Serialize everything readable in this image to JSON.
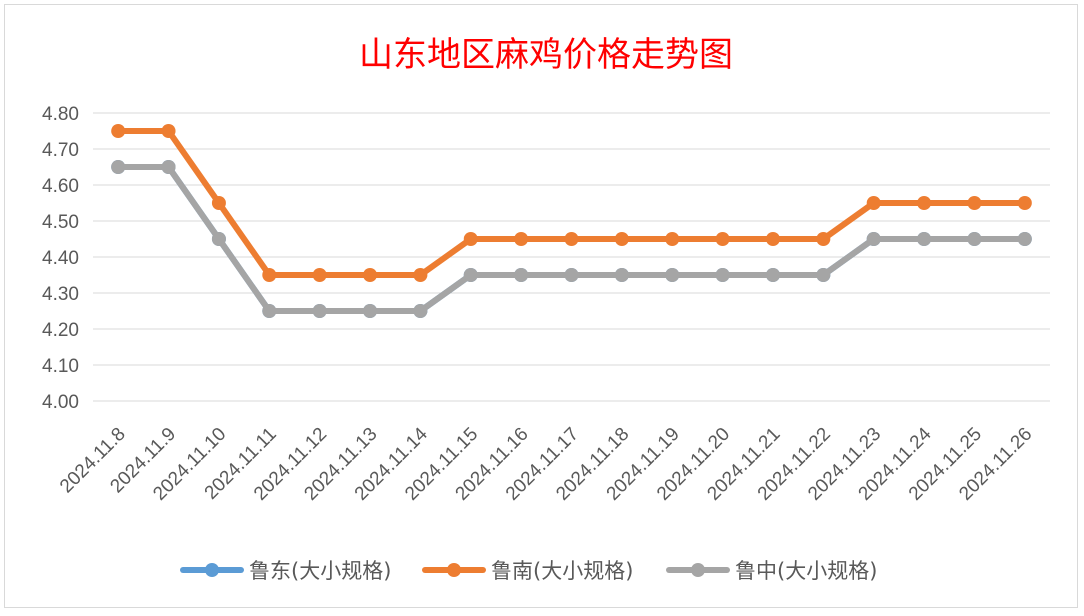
{
  "chart_data": {
    "type": "line",
    "title": "山东地区麻鸡价格走势图",
    "xlabel": "",
    "ylabel": "",
    "categories": [
      "2024.11.8",
      "2024.11.9",
      "2024.11.10",
      "2024.11.11",
      "2024.11.12",
      "2024.11.13",
      "2024.11.14",
      "2024.11.15",
      "2024.11.16",
      "2024.11.17",
      "2024.11.18",
      "2024.11.19",
      "2024.11.20",
      "2024.11.21",
      "2024.11.22",
      "2024.11.23",
      "2024.11.24",
      "2024.11.25",
      "2024.11.26"
    ],
    "ylim": [
      4.0,
      4.8
    ],
    "yticks": [
      "4.00",
      "4.10",
      "4.20",
      "4.30",
      "4.40",
      "4.50",
      "4.60",
      "4.70",
      "4.80"
    ],
    "grid": true,
    "legend_position": "bottom",
    "series": [
      {
        "name": "鲁东(大小规格)",
        "color": "#5b9bd5",
        "values": [
          4.65,
          4.65,
          4.45,
          4.25,
          4.25,
          4.25,
          4.25,
          4.35,
          4.35,
          4.35,
          4.35,
          4.35,
          4.35,
          4.35,
          4.35,
          4.45,
          4.45,
          4.45,
          4.45
        ]
      },
      {
        "name": "鲁南(大小规格)",
        "color": "#ed7d31",
        "values": [
          4.75,
          4.75,
          4.55,
          4.35,
          4.35,
          4.35,
          4.35,
          4.45,
          4.45,
          4.45,
          4.45,
          4.45,
          4.45,
          4.45,
          4.45,
          4.55,
          4.55,
          4.55,
          4.55
        ]
      },
      {
        "name": "鲁中(大小规格)",
        "color": "#a5a5a5",
        "values": [
          4.65,
          4.65,
          4.45,
          4.25,
          4.25,
          4.25,
          4.25,
          4.35,
          4.35,
          4.35,
          4.35,
          4.35,
          4.35,
          4.35,
          4.35,
          4.45,
          4.45,
          4.45,
          4.45
        ]
      }
    ]
  }
}
